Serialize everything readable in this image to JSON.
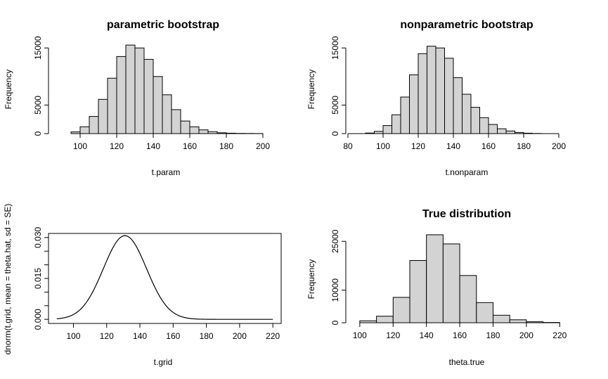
{
  "chart_data": [
    {
      "type": "bar",
      "title": "parametric bootstrap",
      "xlabel": "t.param",
      "ylabel": "Frequency",
      "bin_width": 5,
      "bins_start": [
        95,
        100,
        105,
        110,
        115,
        120,
        125,
        130,
        135,
        140,
        145,
        150,
        155,
        160,
        165,
        170,
        175,
        180,
        185,
        190,
        195
      ],
      "values": [
        300,
        1200,
        3000,
        6000,
        9700,
        13500,
        15500,
        15000,
        13000,
        10000,
        6800,
        4200,
        2200,
        1200,
        650,
        350,
        150,
        80,
        40,
        20,
        10
      ],
      "xlim": [
        85,
        205
      ],
      "ylim": [
        0,
        16500
      ],
      "xticks": [
        100,
        120,
        140,
        160,
        180,
        200
      ],
      "yticks": [
        0,
        5000,
        15000
      ],
      "ytick_labels": [
        "0",
        "5000",
        "15000"
      ]
    },
    {
      "type": "bar",
      "title": "nonparametric bootstrap",
      "xlabel": "t.nonparam",
      "ylabel": "Frequency",
      "bin_width": 5,
      "bins_start": [
        90,
        95,
        100,
        105,
        110,
        115,
        120,
        125,
        130,
        135,
        140,
        145,
        150,
        155,
        160,
        165,
        170,
        175,
        180,
        185
      ],
      "values": [
        100,
        400,
        1400,
        3300,
        6400,
        10300,
        14000,
        15300,
        15000,
        13200,
        9800,
        6900,
        4600,
        2800,
        1600,
        850,
        450,
        200,
        80,
        30
      ],
      "xlim": [
        80,
        210
      ],
      "ylim": [
        0,
        16500
      ],
      "xticks": [
        80,
        100,
        120,
        140,
        160,
        180,
        200
      ],
      "yticks": [
        0,
        5000,
        15000
      ],
      "ytick_labels": [
        "0",
        "5000",
        "15000"
      ]
    },
    {
      "type": "line",
      "title": "",
      "xlabel": "t.grid",
      "ylabel": "dnorm(t.grid, mean = theta.hat, sd = SE)",
      "mean": 131,
      "sd": 13,
      "x_range": [
        90,
        220
      ],
      "xlim": [
        85,
        225
      ],
      "ylim": [
        -0.0015,
        0.0315
      ],
      "xticks": [
        100,
        120,
        140,
        160,
        180,
        200,
        220
      ],
      "yticks": [
        0.0,
        0.005,
        0.01,
        0.015,
        0.02,
        0.025,
        0.03
      ],
      "ytick_labels": [
        "0.000",
        "",
        "",
        "0.015",
        "",
        "",
        "0.030"
      ]
    },
    {
      "type": "bar",
      "title": "True distribution",
      "xlabel": "theta.true",
      "ylabel": "Frequency",
      "bin_width": 10,
      "bins_start": [
        100,
        110,
        120,
        130,
        140,
        150,
        160,
        170,
        180,
        190,
        200,
        210
      ],
      "values": [
        600,
        2000,
        7800,
        19100,
        27000,
        24200,
        14500,
        6200,
        2300,
        900,
        300,
        80
      ],
      "xlim": [
        95,
        230
      ],
      "ylim": [
        0,
        28500
      ],
      "xticks": [
        100,
        120,
        140,
        160,
        180,
        200,
        220
      ],
      "yticks": [
        0,
        10000,
        25000
      ],
      "ytick_labels": [
        "0",
        "10000",
        "25000"
      ]
    }
  ]
}
